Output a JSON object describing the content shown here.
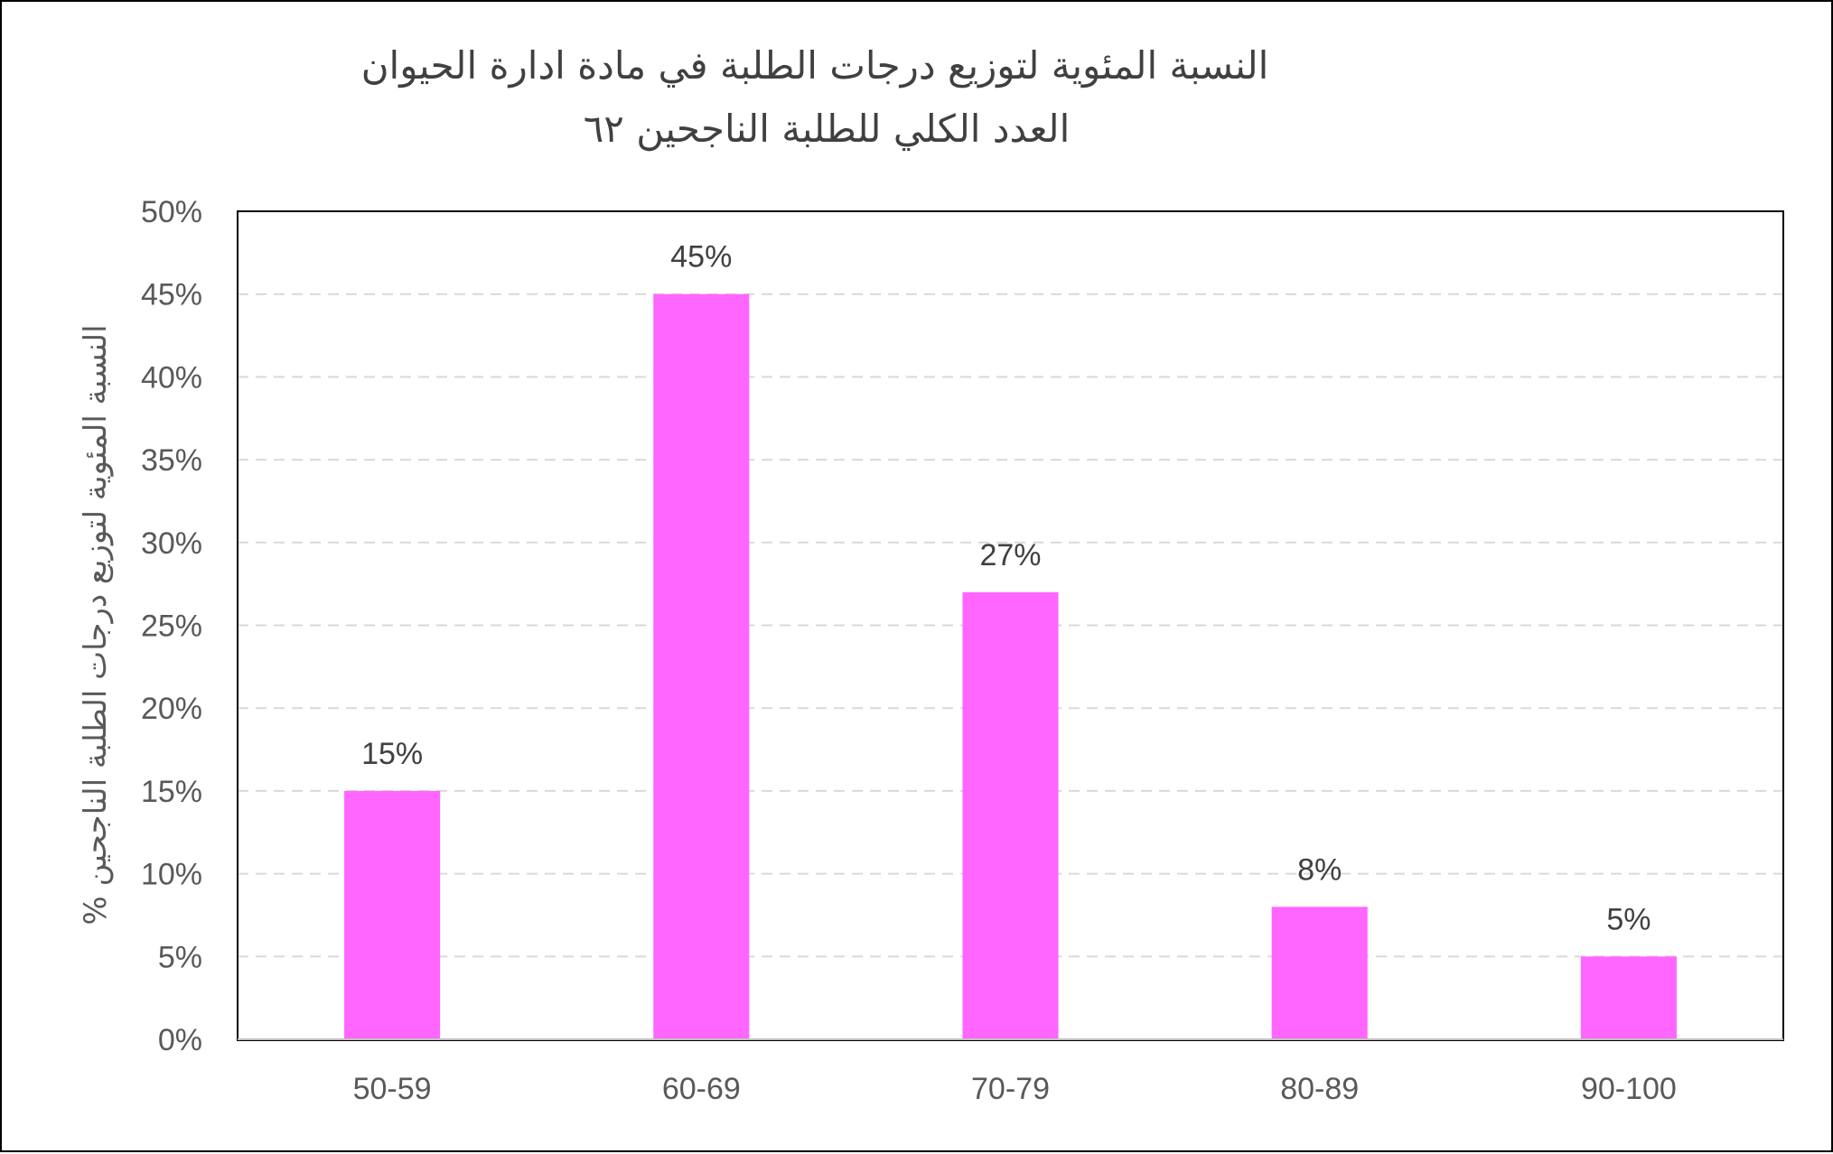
{
  "chart_data": {
    "type": "bar",
    "title_lines": [
      "النسبة المئوية لتوزيع درجات الطلبة في مادة ادارة الحيوان",
      "العدد الكلي للطلبة الناجحين ٦٢"
    ],
    "xlabel": "",
    "ylabel": "النسبة المئوية لتوزيع درجات الطلبة الناجحين %",
    "categories": [
      "50-59",
      "60-69",
      "70-79",
      "80-89",
      "90-100"
    ],
    "values": [
      15,
      45,
      27,
      8,
      5
    ],
    "value_labels": [
      "15%",
      "45%",
      "27%",
      "8%",
      "5%"
    ],
    "y_ticks": [
      0,
      5,
      10,
      15,
      20,
      25,
      30,
      35,
      40,
      45,
      50
    ],
    "y_tick_labels": [
      "0%",
      "5%",
      "10%",
      "15%",
      "20%",
      "25%",
      "30%",
      "35%",
      "40%",
      "45%",
      "50%"
    ],
    "ylim": [
      0,
      50
    ],
    "grid": true,
    "grid_style": "dashed",
    "legend": "none",
    "colors": {
      "bar": "#FF66FF",
      "gridline": "#D9D9D9",
      "plot_border": "#000000",
      "axis_line": "#BFBFBF"
    }
  }
}
